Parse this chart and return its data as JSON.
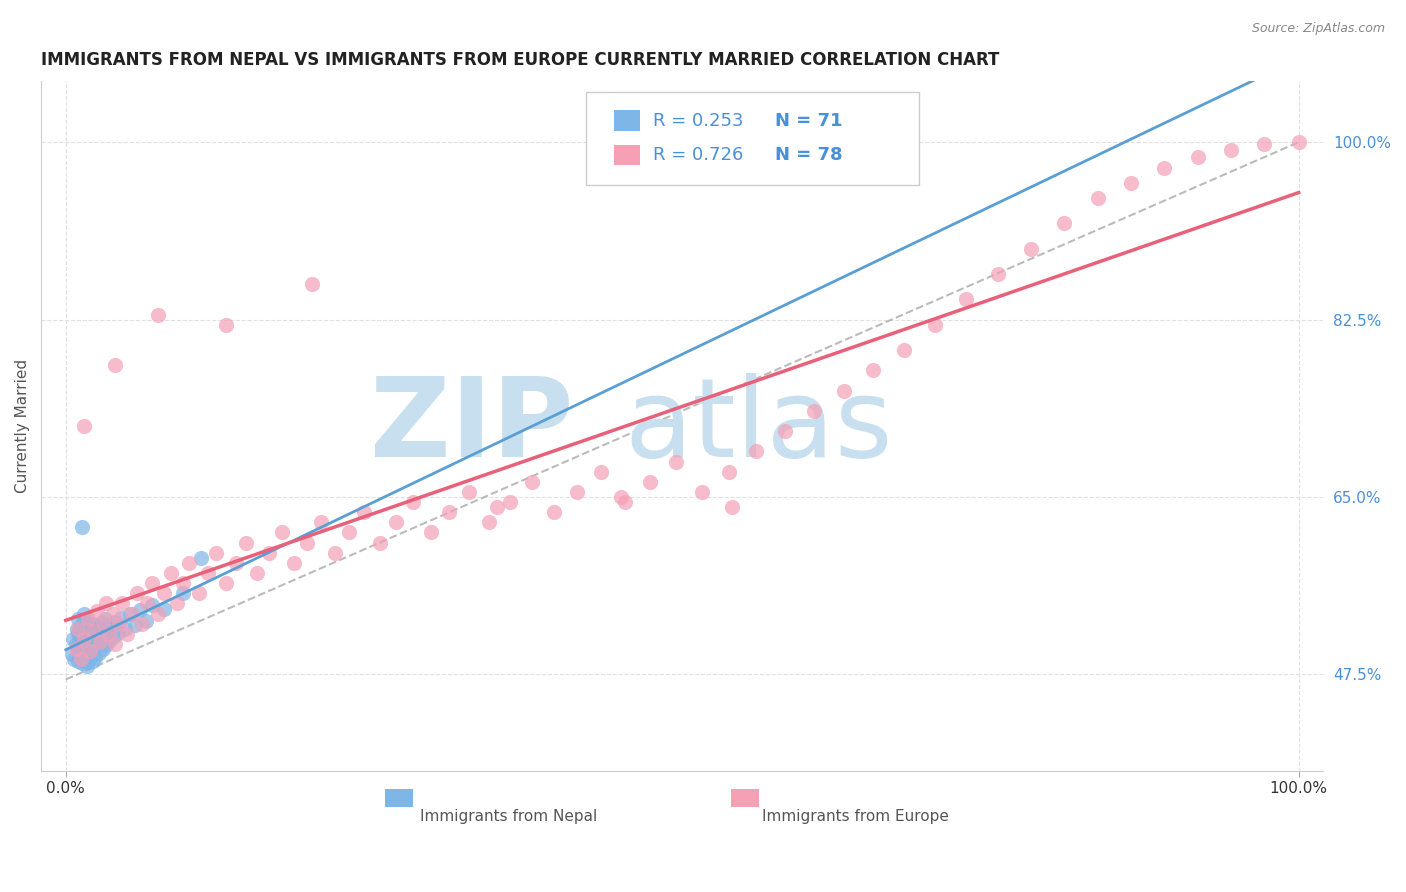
{
  "title": "IMMIGRANTS FROM NEPAL VS IMMIGRANTS FROM EUROPE CURRENTLY MARRIED CORRELATION CHART",
  "source": "Source: ZipAtlas.com",
  "ylabel": "Currently Married",
  "nepal_color": "#7eb6e8",
  "europe_color": "#f5a0b5",
  "nepal_line_color": "#5a9fd4",
  "europe_line_color": "#e8607a",
  "nepal_R": 0.253,
  "nepal_N": 71,
  "europe_R": 0.726,
  "europe_N": 78,
  "watermark_zip": "ZIP",
  "watermark_atlas": "atlas",
  "watermark_color": "#c8dff0",
  "y_tick_color": "#4a90d9",
  "x_tick_color": "#333333",
  "grid_color": "#e0e0e0",
  "grid_style": "--",
  "xlim": [
    -0.02,
    1.02
  ],
  "ylim": [
    0.38,
    1.06
  ],
  "nepal_scatter_x": [
    0.005,
    0.006,
    0.007,
    0.008,
    0.009,
    0.01,
    0.01,
    0.01,
    0.01,
    0.01,
    0.01,
    0.011,
    0.011,
    0.012,
    0.012,
    0.012,
    0.013,
    0.013,
    0.013,
    0.014,
    0.014,
    0.014,
    0.015,
    0.015,
    0.015,
    0.015,
    0.016,
    0.016,
    0.016,
    0.017,
    0.017,
    0.018,
    0.018,
    0.018,
    0.019,
    0.019,
    0.02,
    0.02,
    0.02,
    0.021,
    0.021,
    0.022,
    0.022,
    0.023,
    0.023,
    0.024,
    0.025,
    0.026,
    0.027,
    0.028,
    0.029,
    0.03,
    0.031,
    0.032,
    0.033,
    0.034,
    0.035,
    0.036,
    0.038,
    0.04,
    0.042,
    0.045,
    0.048,
    0.052,
    0.056,
    0.06,
    0.065,
    0.07,
    0.08,
    0.095,
    0.11
  ],
  "nepal_scatter_y": [
    0.495,
    0.51,
    0.49,
    0.505,
    0.52,
    0.5,
    0.515,
    0.53,
    0.488,
    0.503,
    0.518,
    0.492,
    0.507,
    0.522,
    0.496,
    0.511,
    0.486,
    0.501,
    0.516,
    0.498,
    0.513,
    0.528,
    0.49,
    0.505,
    0.52,
    0.535,
    0.494,
    0.509,
    0.524,
    0.483,
    0.498,
    0.513,
    0.528,
    0.487,
    0.502,
    0.517,
    0.491,
    0.506,
    0.521,
    0.495,
    0.51,
    0.525,
    0.488,
    0.503,
    0.518,
    0.492,
    0.507,
    0.522,
    0.496,
    0.511,
    0.526,
    0.5,
    0.515,
    0.53,
    0.504,
    0.519,
    0.508,
    0.523,
    0.512,
    0.527,
    0.516,
    0.531,
    0.52,
    0.535,
    0.524,
    0.539,
    0.528,
    0.543,
    0.54,
    0.555,
    0.59
  ],
  "europe_scatter_x": [
    0.008,
    0.01,
    0.012,
    0.015,
    0.018,
    0.02,
    0.022,
    0.025,
    0.028,
    0.03,
    0.033,
    0.035,
    0.038,
    0.04,
    0.043,
    0.046,
    0.05,
    0.054,
    0.058,
    0.062,
    0.066,
    0.07,
    0.075,
    0.08,
    0.085,
    0.09,
    0.095,
    0.1,
    0.108,
    0.115,
    0.122,
    0.13,
    0.138,
    0.146,
    0.155,
    0.165,
    0.175,
    0.185,
    0.196,
    0.207,
    0.218,
    0.23,
    0.242,
    0.255,
    0.268,
    0.282,
    0.296,
    0.311,
    0.327,
    0.343,
    0.36,
    0.378,
    0.396,
    0.415,
    0.434,
    0.454,
    0.474,
    0.495,
    0.516,
    0.538,
    0.56,
    0.583,
    0.607,
    0.631,
    0.655,
    0.68,
    0.705,
    0.73,
    0.756,
    0.783,
    0.81,
    0.837,
    0.864,
    0.891,
    0.918,
    0.945,
    0.972,
    1.0
  ],
  "europe_scatter_y": [
    0.5,
    0.52,
    0.49,
    0.51,
    0.53,
    0.498,
    0.518,
    0.538,
    0.507,
    0.527,
    0.545,
    0.515,
    0.535,
    0.505,
    0.525,
    0.545,
    0.515,
    0.535,
    0.555,
    0.525,
    0.545,
    0.565,
    0.535,
    0.555,
    0.575,
    0.545,
    0.565,
    0.585,
    0.555,
    0.575,
    0.595,
    0.565,
    0.585,
    0.605,
    0.575,
    0.595,
    0.615,
    0.585,
    0.605,
    0.625,
    0.595,
    0.615,
    0.635,
    0.605,
    0.625,
    0.645,
    0.615,
    0.635,
    0.655,
    0.625,
    0.645,
    0.665,
    0.635,
    0.655,
    0.675,
    0.645,
    0.665,
    0.685,
    0.655,
    0.675,
    0.695,
    0.715,
    0.735,
    0.755,
    0.775,
    0.795,
    0.82,
    0.845,
    0.87,
    0.895,
    0.92,
    0.945,
    0.96,
    0.975,
    0.985,
    0.992,
    0.998,
    1.0
  ],
  "europe_outliers_x": [
    0.015,
    0.04,
    0.075,
    0.13,
    0.2,
    0.35,
    0.45,
    0.54
  ],
  "europe_outliers_y": [
    0.72,
    0.78,
    0.83,
    0.82,
    0.86,
    0.64,
    0.65,
    0.64
  ],
  "nepal_outlier_x": [
    0.013
  ],
  "nepal_outlier_y": [
    0.62
  ]
}
